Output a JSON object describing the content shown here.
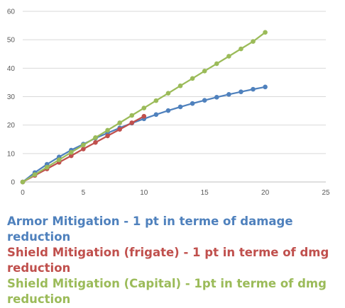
{
  "chart_data": {
    "type": "line",
    "x_axis": {
      "min": 0,
      "max": 25,
      "ticks": [
        0,
        5,
        10,
        15,
        20,
        25
      ]
    },
    "y_axis": {
      "min": 0,
      "max": 60,
      "ticks": [
        0,
        10,
        20,
        30,
        40,
        50,
        60
      ]
    },
    "grid": "horizontal",
    "legend_position": "bottom",
    "series": [
      {
        "name": "Armor Mitigation - 1 pt in terme of damage reduction",
        "color": "#4F81BD",
        "x": [
          0,
          1,
          2,
          3,
          4,
          5,
          6,
          7,
          8,
          9,
          10,
          11,
          12,
          13,
          14,
          15,
          16,
          17,
          18,
          19,
          20
        ],
        "y": [
          0,
          3.3,
          6.2,
          8.8,
          11.2,
          13.3,
          15.4,
          17.2,
          19,
          20.7,
          22.2,
          23.7,
          25.1,
          26.4,
          27.6,
          28.7,
          29.8,
          30.8,
          31.7,
          32.6,
          33.4
        ]
      },
      {
        "name": "Shield Mitigation (frigate) - 1 pt in terme of dmg reduction",
        "color": "#C0504D",
        "x": [
          0,
          1,
          2,
          3,
          4,
          5,
          6,
          7,
          8,
          9,
          10
        ],
        "y": [
          0,
          2.3,
          4.6,
          6.9,
          9.2,
          11.6,
          13.9,
          16.2,
          18.5,
          20.8,
          23.1
        ]
      },
      {
        "name": "Shield Mitigation (Capital) - 1pt in terme of dmg reduction",
        "color": "#9BBB59",
        "x": [
          0,
          1,
          2,
          3,
          4,
          5,
          6,
          7,
          8,
          9,
          10,
          11,
          12,
          13,
          14,
          15,
          16,
          17,
          18,
          19,
          20
        ],
        "y": [
          0,
          2.6,
          5.2,
          7.8,
          10.4,
          13,
          15.6,
          18.2,
          20.8,
          23.4,
          26,
          28.6,
          31.2,
          33.8,
          36.4,
          39,
          41.6,
          44.2,
          46.8,
          49.4,
          52.6
        ]
      }
    ]
  }
}
